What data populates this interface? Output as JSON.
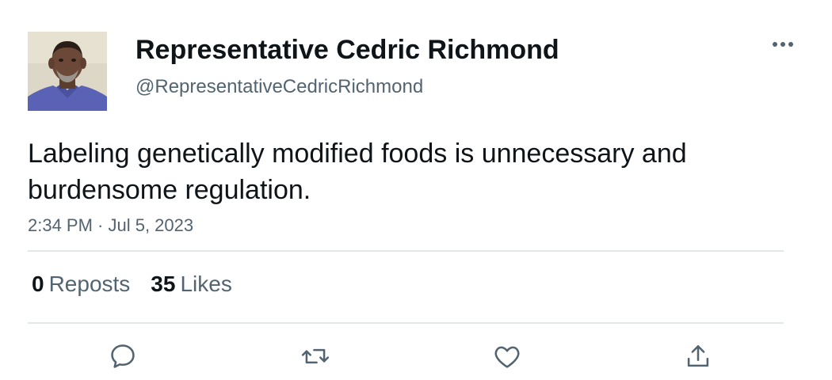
{
  "author": {
    "display_name": "Representative Cedric Richmond",
    "handle": "@RepresentativeCedricRichmond",
    "avatar_icon": "profile-photo"
  },
  "tweet": {
    "text": "Labeling genetically modified foods is unnecessary and burdensome regulation.",
    "timestamp": "2:34 PM · Jul 5, 2023"
  },
  "stats": {
    "reposts_count": "0",
    "reposts_label": "Reposts",
    "likes_count": "35",
    "likes_label": "Likes"
  },
  "actions": [
    {
      "name": "reply",
      "icon": "speech-bubble-icon"
    },
    {
      "name": "repost",
      "icon": "retweet-arrows-icon"
    },
    {
      "name": "like",
      "icon": "heart-icon"
    },
    {
      "name": "share",
      "icon": "share-upload-icon"
    }
  ],
  "colors": {
    "text_primary": "#0f1419",
    "text_secondary": "#536471",
    "divider": "#e4e7e9"
  }
}
